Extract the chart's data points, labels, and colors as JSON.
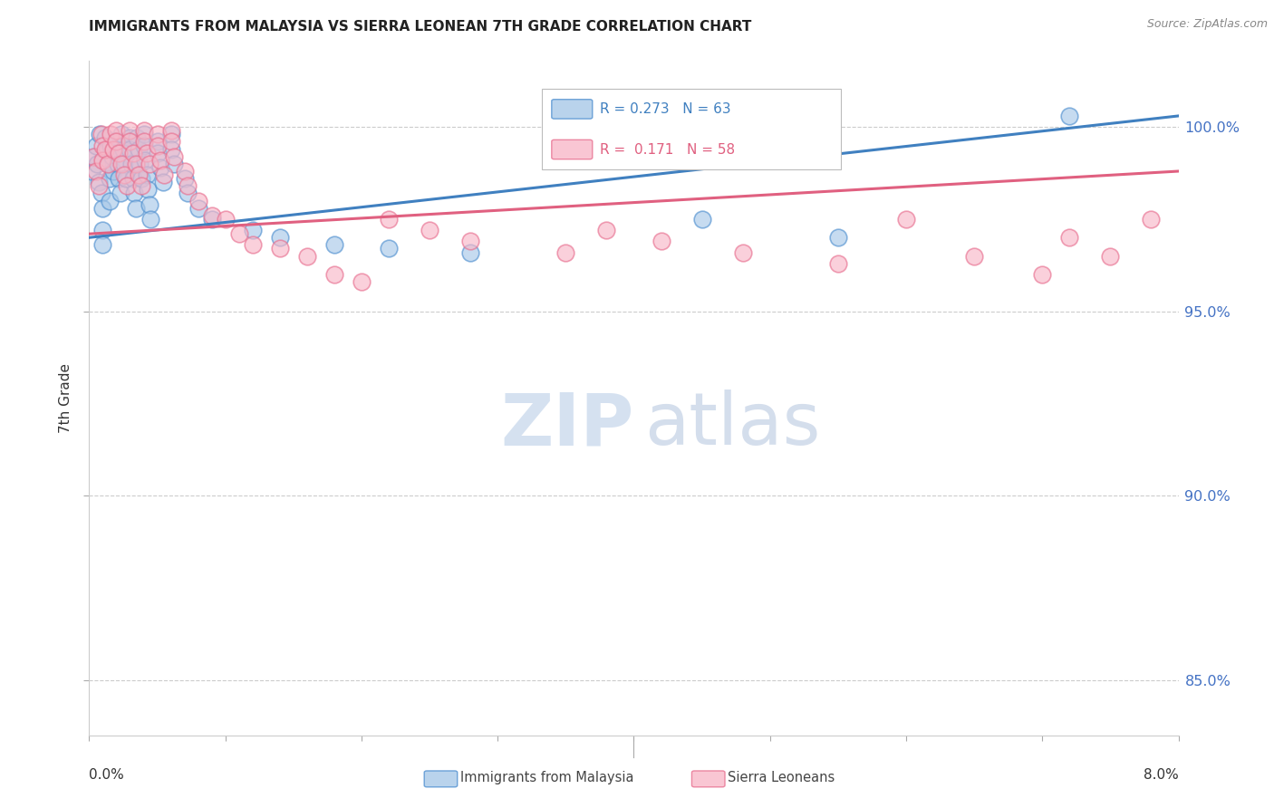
{
  "title": "IMMIGRANTS FROM MALAYSIA VS SIERRA LEONEAN 7TH GRADE CORRELATION CHART",
  "source": "Source: ZipAtlas.com",
  "ylabel": "7th Grade",
  "yaxis_labels": [
    "85.0%",
    "90.0%",
    "95.0%",
    "100.0%"
  ],
  "yaxis_values": [
    0.85,
    0.9,
    0.95,
    1.0
  ],
  "xmin": 0.0,
  "xmax": 0.08,
  "ymin": 0.835,
  "ymax": 1.018,
  "legend_blue_r": "0.273",
  "legend_blue_n": "63",
  "legend_pink_r": "0.171",
  "legend_pink_n": "58",
  "blue_color": "#a8c8e8",
  "pink_color": "#f8b8c8",
  "blue_edge_color": "#5090d0",
  "pink_edge_color": "#e87090",
  "blue_line_color": "#4080c0",
  "pink_line_color": "#e06080",
  "blue_x": [
    0.0002,
    0.0004,
    0.0005,
    0.0006,
    0.0007,
    0.0008,
    0.0009,
    0.001,
    0.001,
    0.001,
    0.0012,
    0.0013,
    0.0014,
    0.0015,
    0.0015,
    0.0016,
    0.0017,
    0.0018,
    0.002,
    0.002,
    0.0021,
    0.0022,
    0.0023,
    0.0024,
    0.0025,
    0.0026,
    0.0027,
    0.003,
    0.003,
    0.0031,
    0.0032,
    0.0033,
    0.0034,
    0.0035,
    0.0036,
    0.0037,
    0.0038,
    0.004,
    0.004,
    0.0041,
    0.0042,
    0.0043,
    0.0044,
    0.0045,
    0.005,
    0.005,
    0.0052,
    0.0054,
    0.006,
    0.006,
    0.0062,
    0.007,
    0.0072,
    0.008,
    0.009,
    0.012,
    0.014,
    0.018,
    0.022,
    0.028,
    0.045,
    0.055,
    0.072
  ],
  "blue_y": [
    0.988,
    0.992,
    0.995,
    0.99,
    0.985,
    0.998,
    0.982,
    0.978,
    0.972,
    0.968,
    0.997,
    0.994,
    0.99,
    0.986,
    0.98,
    0.995,
    0.992,
    0.988,
    0.996,
    0.993,
    0.99,
    0.986,
    0.982,
    0.998,
    0.994,
    0.99,
    0.986,
    0.997,
    0.994,
    0.99,
    0.986,
    0.982,
    0.978,
    0.997,
    0.994,
    0.99,
    0.986,
    0.998,
    0.995,
    0.991,
    0.987,
    0.983,
    0.979,
    0.975,
    0.996,
    0.993,
    0.989,
    0.985,
    0.998,
    0.994,
    0.99,
    0.986,
    0.982,
    0.978,
    0.975,
    0.972,
    0.97,
    0.968,
    0.967,
    0.966,
    0.975,
    0.97,
    1.003
  ],
  "pink_x": [
    0.0003,
    0.0005,
    0.0007,
    0.0009,
    0.001,
    0.001,
    0.0012,
    0.0014,
    0.0016,
    0.0018,
    0.002,
    0.002,
    0.0022,
    0.0024,
    0.0026,
    0.0028,
    0.003,
    0.003,
    0.0032,
    0.0034,
    0.0036,
    0.0038,
    0.004,
    0.004,
    0.0042,
    0.0044,
    0.005,
    0.005,
    0.0052,
    0.0055,
    0.006,
    0.006,
    0.0062,
    0.007,
    0.0072,
    0.008,
    0.009,
    0.01,
    0.011,
    0.012,
    0.014,
    0.016,
    0.018,
    0.02,
    0.022,
    0.025,
    0.028,
    0.035,
    0.038,
    0.042,
    0.048,
    0.055,
    0.06,
    0.065,
    0.07,
    0.072,
    0.075,
    0.078
  ],
  "pink_y": [
    0.992,
    0.988,
    0.984,
    0.998,
    0.995,
    0.991,
    0.994,
    0.99,
    0.998,
    0.994,
    0.999,
    0.996,
    0.993,
    0.99,
    0.987,
    0.984,
    0.999,
    0.996,
    0.993,
    0.99,
    0.987,
    0.984,
    0.999,
    0.996,
    0.993,
    0.99,
    0.998,
    0.995,
    0.991,
    0.987,
    0.999,
    0.996,
    0.992,
    0.988,
    0.984,
    0.98,
    0.976,
    0.975,
    0.971,
    0.968,
    0.967,
    0.965,
    0.96,
    0.958,
    0.975,
    0.972,
    0.969,
    0.966,
    0.972,
    0.969,
    0.966,
    0.963,
    0.975,
    0.965,
    0.96,
    0.97,
    0.965,
    0.975
  ],
  "watermark_zip_color": "#c8d8ec",
  "watermark_atlas_color": "#b8c8e0"
}
